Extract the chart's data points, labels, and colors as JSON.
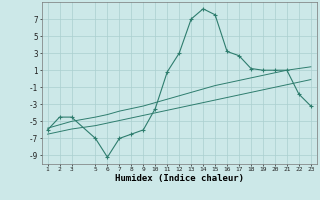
{
  "x": [
    1,
    2,
    3,
    5,
    6,
    7,
    8,
    9,
    10,
    11,
    12,
    13,
    14,
    15,
    16,
    17,
    18,
    19,
    20,
    21,
    22,
    23
  ],
  "y_main": [
    -6,
    -4.5,
    -4.5,
    -7,
    -9.2,
    -7,
    -6.5,
    -6,
    -3.5,
    0.8,
    3,
    7,
    8.2,
    7.5,
    3.2,
    2.7,
    1.2,
    1,
    1,
    1,
    -1.8,
    -3.2
  ],
  "y_upper": [
    -5.8,
    -5.4,
    -5.0,
    -4.5,
    -4.2,
    -3.8,
    -3.5,
    -3.2,
    -2.8,
    -2.4,
    -2.0,
    -1.6,
    -1.2,
    -0.8,
    -0.5,
    -0.2,
    0.1,
    0.4,
    0.7,
    1.0,
    1.2,
    1.4
  ],
  "y_lower": [
    -6.5,
    -6.2,
    -5.9,
    -5.5,
    -5.2,
    -4.9,
    -4.6,
    -4.3,
    -4.0,
    -3.7,
    -3.4,
    -3.1,
    -2.8,
    -2.5,
    -2.2,
    -1.9,
    -1.6,
    -1.3,
    -1.0,
    -0.7,
    -0.4,
    -0.1
  ],
  "color": "#2e7d6e",
  "bg_color": "#cce8e8",
  "grid_color": "#aacfcf",
  "xlabel": "Humidex (Indice chaleur)",
  "xlim": [
    0.5,
    23.5
  ],
  "ylim": [
    -10,
    9
  ],
  "yticks": [
    -9,
    -7,
    -5,
    -3,
    -1,
    1,
    3,
    5,
    7
  ],
  "xticks": [
    1,
    2,
    3,
    5,
    6,
    7,
    8,
    9,
    10,
    11,
    12,
    13,
    14,
    15,
    16,
    17,
    18,
    19,
    20,
    21,
    22,
    23
  ]
}
